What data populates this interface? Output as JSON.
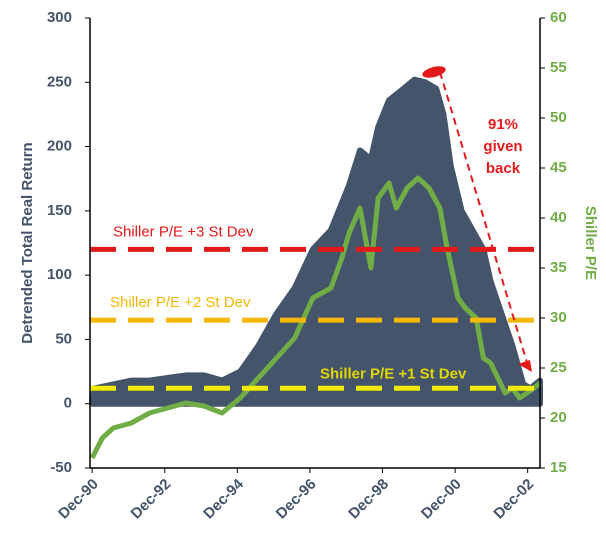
{
  "chart_data": {
    "type": "area_line",
    "y_label": "Detrended Total Real Return",
    "y2_label": "Shiller P/E",
    "xlim": [
      1990.86,
      2003.26
    ],
    "xticks": [
      {
        "value": 1990.92,
        "label": "Dec-90"
      },
      {
        "value": 1992.92,
        "label": "Dec-92"
      },
      {
        "value": 1994.92,
        "label": "Dec-94"
      },
      {
        "value": 1996.92,
        "label": "Dec-96"
      },
      {
        "value": 1998.92,
        "label": "Dec-98"
      },
      {
        "value": 2000.92,
        "label": "Dec-00"
      },
      {
        "value": 2002.92,
        "label": "Dec-02"
      }
    ],
    "ylim": [
      -50,
      300
    ],
    "yticks": [
      -50,
      0,
      50,
      100,
      150,
      200,
      250,
      300
    ],
    "y2lim": [
      15,
      60
    ],
    "y2ticks": [
      15,
      20,
      25,
      30,
      35,
      40,
      45,
      50,
      55,
      60
    ],
    "series": [
      {
        "name": "Detrended Total Real Return",
        "color": "#44546a",
        "kind": "area",
        "x": [
          1990.92,
          1991.0,
          1991.5,
          1992.0,
          1992.5,
          1993.0,
          1993.5,
          1994.0,
          1994.5,
          1995.0,
          1995.5,
          1996.0,
          1996.5,
          1997.0,
          1997.5,
          1998.0,
          1998.3,
          1998.6,
          1998.8,
          1999.1,
          1999.5,
          1999.8,
          2000.1,
          2000.4,
          2000.6,
          2000.8,
          2001.1,
          2001.4,
          2001.7,
          2001.9,
          2002.2,
          2002.5,
          2002.8,
          2003.0,
          2003.26
        ],
        "values": [
          5,
          12,
          15,
          18,
          18,
          20,
          22,
          22,
          18,
          25,
          45,
          70,
          90,
          120,
          135,
          170,
          197,
          190,
          215,
          236,
          245,
          252,
          250,
          245,
          225,
          185,
          150,
          135,
          120,
          95,
          70,
          45,
          15,
          12,
          18
        ]
      },
      {
        "name": "Shiller P/E",
        "color": "#70ad47",
        "kind": "line",
        "axis": "y2",
        "x": [
          1990.92,
          1991.2,
          1991.5,
          1992.0,
          1992.5,
          1993.0,
          1993.5,
          1994.0,
          1994.5,
          1995.0,
          1995.5,
          1996.0,
          1996.5,
          1997.0,
          1997.5,
          1997.8,
          1998.0,
          1998.3,
          1998.6,
          1998.8,
          1999.1,
          1999.3,
          1999.6,
          1999.9,
          2000.2,
          2000.5,
          2000.7,
          2001.0,
          2001.2,
          2001.5,
          2001.7,
          2001.9,
          2002.1,
          2002.3,
          2002.5,
          2002.7,
          2002.9,
          2003.1,
          2003.26
        ],
        "values": [
          16,
          18,
          19,
          19.5,
          20.5,
          21,
          21.5,
          21.2,
          20.5,
          22,
          24,
          26,
          28,
          32,
          33,
          36,
          38.5,
          41,
          35,
          42,
          43.5,
          41,
          43,
          44,
          43,
          41,
          37,
          32,
          31,
          30,
          26,
          25.5,
          24,
          22.5,
          23,
          22,
          22.5,
          23,
          23.5
        ]
      }
    ],
    "reference_lines": [
      {
        "label": "Shiller P/E +3 St Dev",
        "value": 120,
        "color": "#e31a1c"
      },
      {
        "label": "Shiller P/E +2 St Dev",
        "value": 65,
        "color": "#f5b800"
      },
      {
        "label": "Shiller P/E +1 St Dev",
        "value": 12,
        "color": "#f2ea00",
        "label_color": "#e0d600"
      }
    ],
    "annotation": {
      "lines": [
        "91%",
        "given",
        "back"
      ],
      "color": "#e31a1c"
    }
  }
}
